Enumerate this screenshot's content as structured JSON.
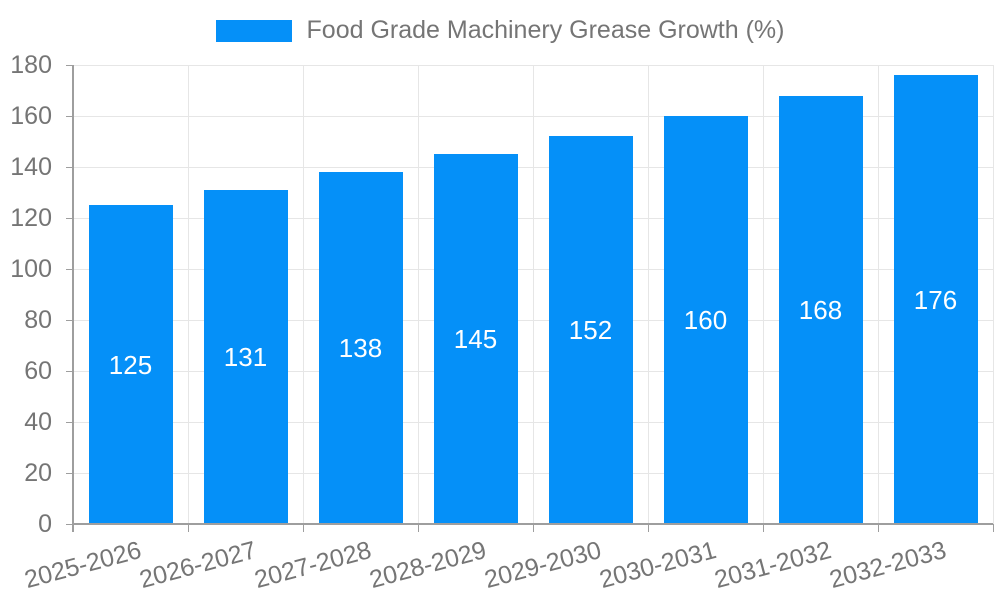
{
  "chart_data": {
    "type": "bar",
    "categories": [
      "2025-2026",
      "2026-2027",
      "2027-2028",
      "2028-2029",
      "2029-2030",
      "2030-2031",
      "2031-2032",
      "2032-2033"
    ],
    "values": [
      125,
      131,
      138,
      145,
      152,
      160,
      168,
      176
    ],
    "title": "",
    "xlabel": "",
    "ylabel": "",
    "ylim": [
      0,
      180
    ],
    "ytick_step": 20,
    "legend": [
      "Food Grade Machinery Grease Growth (%)"
    ],
    "legend_position": "top",
    "grid": true,
    "value_labels": "inside-center",
    "colors": {
      "bar": "#0590F8",
      "value_label": "#FFFFFF",
      "axis_text": "#757575",
      "grid_line": "#E6E6E6",
      "axis_line": "#9E9E9E",
      "background": "#FFFFFF"
    }
  }
}
